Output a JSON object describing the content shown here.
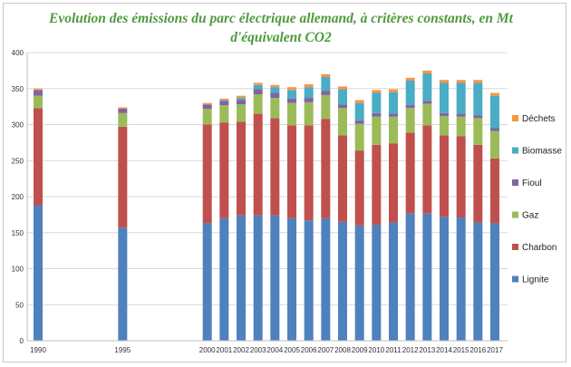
{
  "chart_data": {
    "type": "bar",
    "stacked": true,
    "title": "Evolution des émissions du parc électrique allemand, à critères constants, en Mt d'équivalent CO2",
    "xlabel": "",
    "ylabel": "",
    "ylim": [
      0,
      400
    ],
    "yticks": [
      0,
      50,
      100,
      150,
      200,
      250,
      300,
      350,
      400
    ],
    "grid": true,
    "legend_position": "right",
    "categories": [
      "1990",
      "1995",
      "2000",
      "2001",
      "2002",
      "2003",
      "2004",
      "2005",
      "2006",
      "2007",
      "2008",
      "2009",
      "2010",
      "2011",
      "2012",
      "2013",
      "2014",
      "2015",
      "2016",
      "2017"
    ],
    "years": [
      1990,
      1995,
      2000,
      2001,
      2002,
      2003,
      2004,
      2005,
      2006,
      2007,
      2008,
      2009,
      2010,
      2011,
      2012,
      2013,
      2014,
      2015,
      2016,
      2017
    ],
    "series": [
      {
        "name": "Lignite",
        "color": "#4f81bd",
        "values": [
          188,
          157,
          163,
          170,
          174,
          174,
          174,
          170,
          167,
          170,
          165,
          160,
          161,
          164,
          177,
          177,
          172,
          171,
          164,
          163
        ]
      },
      {
        "name": "Charbon",
        "color": "#c0504d",
        "values": [
          135,
          140,
          137,
          133,
          130,
          141,
          135,
          129,
          132,
          138,
          120,
          104,
          111,
          110,
          112,
          122,
          113,
          113,
          108,
          90
        ]
      },
      {
        "name": "Gaz",
        "color": "#9bbb59",
        "values": [
          17,
          19,
          22,
          24,
          24,
          27,
          28,
          31,
          32,
          33,
          38,
          37,
          39,
          37,
          34,
          30,
          27,
          27,
          37,
          38
        ]
      },
      {
        "name": "Fioul",
        "color": "#8064a2",
        "values": [
          8,
          6,
          6,
          6,
          6,
          7,
          7,
          6,
          6,
          6,
          5,
          5,
          5,
          4,
          4,
          4,
          4,
          4,
          4,
          4
        ]
      },
      {
        "name": "Biomasse",
        "color": "#4bacc6",
        "values": [
          0,
          0,
          0,
          1,
          3,
          6,
          8,
          12,
          15,
          19,
          21,
          24,
          28,
          30,
          34,
          38,
          42,
          43,
          45,
          45
        ]
      },
      {
        "name": "Déchets",
        "color": "#f79646",
        "values": [
          2,
          2,
          2,
          2,
          3,
          3,
          3,
          4,
          4,
          4,
          4,
          4,
          4,
          4,
          4,
          4,
          4,
          4,
          4,
          4
        ]
      }
    ],
    "legend_order": [
      "Déchets",
      "Biomasse",
      "Fioul",
      "Gaz",
      "Charbon",
      "Lignite"
    ]
  }
}
